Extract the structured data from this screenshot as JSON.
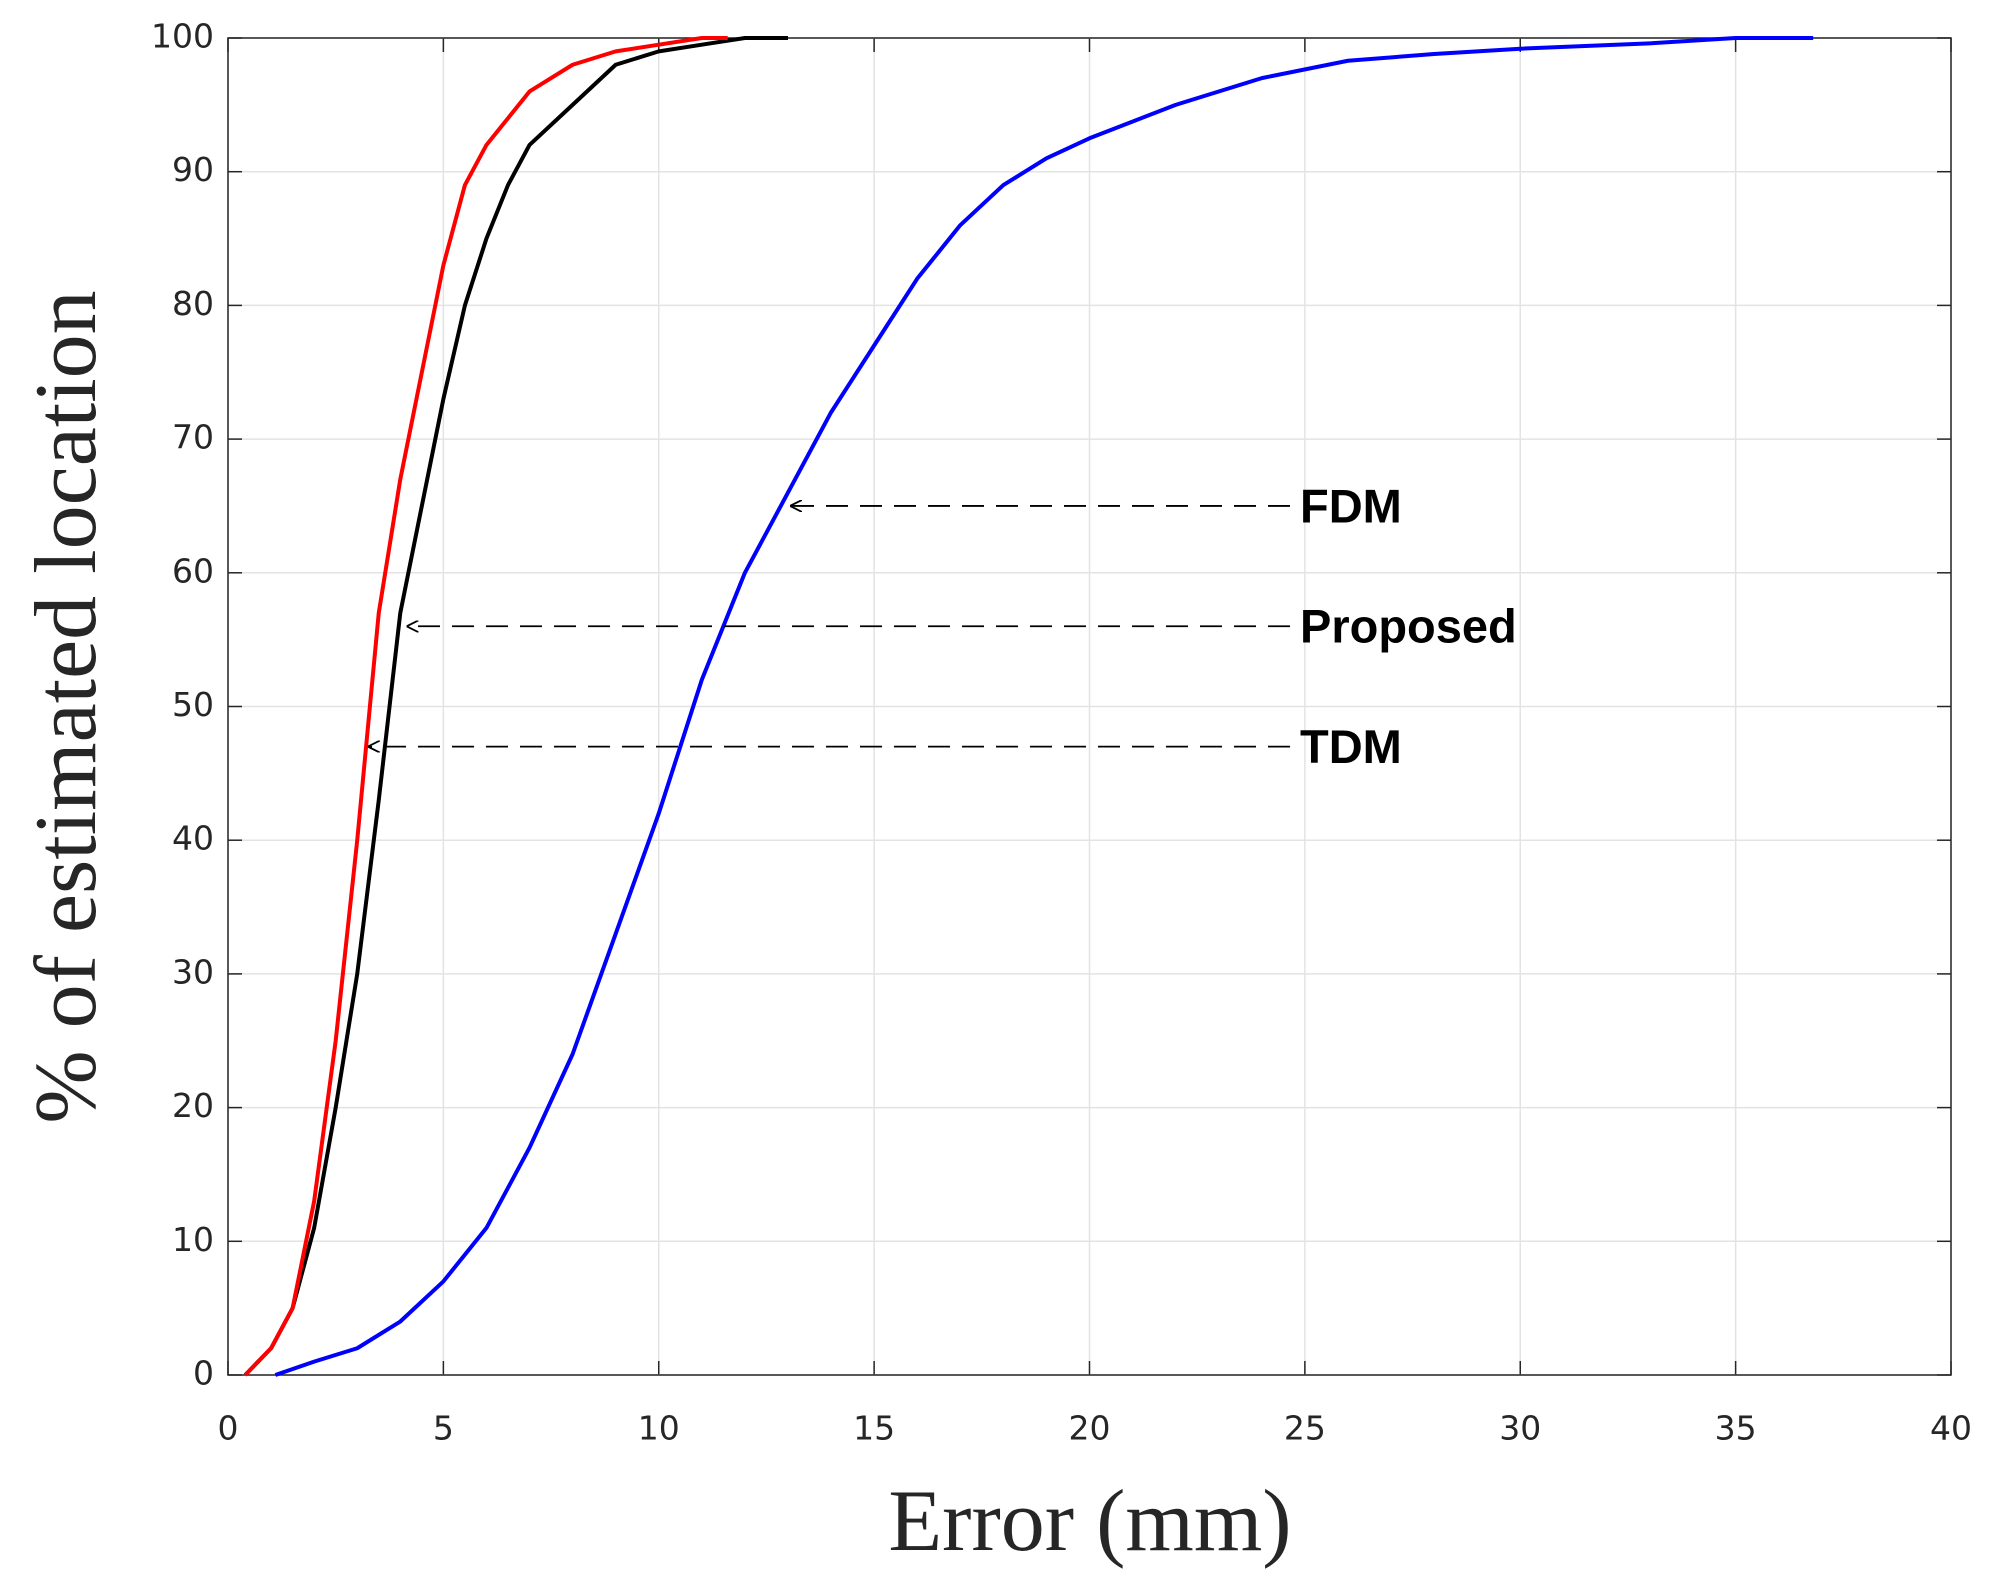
{
  "chart_data": {
    "type": "line",
    "xlabel": "Error (mm)",
    "ylabel": "% of estimated location",
    "xlim": [
      0,
      40
    ],
    "xticks": [
      0,
      5,
      10,
      15,
      20,
      25,
      30,
      35,
      40
    ],
    "ylim": [
      0,
      100
    ],
    "yticks": [
      0,
      10,
      20,
      30,
      40,
      50,
      60,
      70,
      80,
      90,
      100
    ],
    "grid": true,
    "series": [
      {
        "name": "FDM",
        "color": "#0000ff",
        "x": [
          1.1,
          2,
          3,
          4,
          5,
          6,
          7,
          8,
          9,
          10,
          11,
          12,
          13,
          14,
          15,
          16,
          17,
          18,
          19,
          20,
          22,
          24,
          26,
          28,
          30,
          33,
          35,
          36.8
        ],
        "values": [
          0,
          1,
          2,
          4,
          7,
          11,
          17,
          24,
          33,
          42,
          52,
          60,
          66,
          72,
          77,
          82,
          86,
          89,
          91,
          92.5,
          95,
          97,
          98.3,
          98.8,
          99.2,
          99.6,
          100,
          100
        ]
      },
      {
        "name": "Proposed",
        "color": "#000000",
        "x": [
          0.4,
          1,
          1.5,
          2,
          2.5,
          3,
          3.5,
          4,
          4.5,
          5,
          5.5,
          6,
          6.5,
          7,
          8,
          9,
          10,
          11,
          12,
          13
        ],
        "values": [
          0,
          2,
          5,
          11,
          20,
          30,
          43,
          57,
          65,
          73,
          80,
          85,
          89,
          92,
          95,
          98,
          99,
          99.5,
          100,
          100
        ]
      },
      {
        "name": "TDM",
        "color": "#ff0000",
        "x": [
          0.4,
          1,
          1.5,
          2,
          2.5,
          3,
          3.5,
          4,
          4.5,
          5,
          5.5,
          6,
          6.5,
          7,
          8,
          9,
          10,
          11,
          11.6
        ],
        "values": [
          0,
          2,
          5,
          13,
          25,
          40,
          57,
          67,
          75,
          83,
          89,
          92,
          94,
          96,
          98,
          99,
          99.5,
          100,
          100
        ]
      }
    ],
    "annotations": [
      {
        "text": "FDM",
        "x": 13,
        "y": 65
      },
      {
        "text": "Proposed",
        "x": 4.1,
        "y": 56
      },
      {
        "text": "TDM",
        "x": 3.2,
        "y": 47
      }
    ]
  }
}
